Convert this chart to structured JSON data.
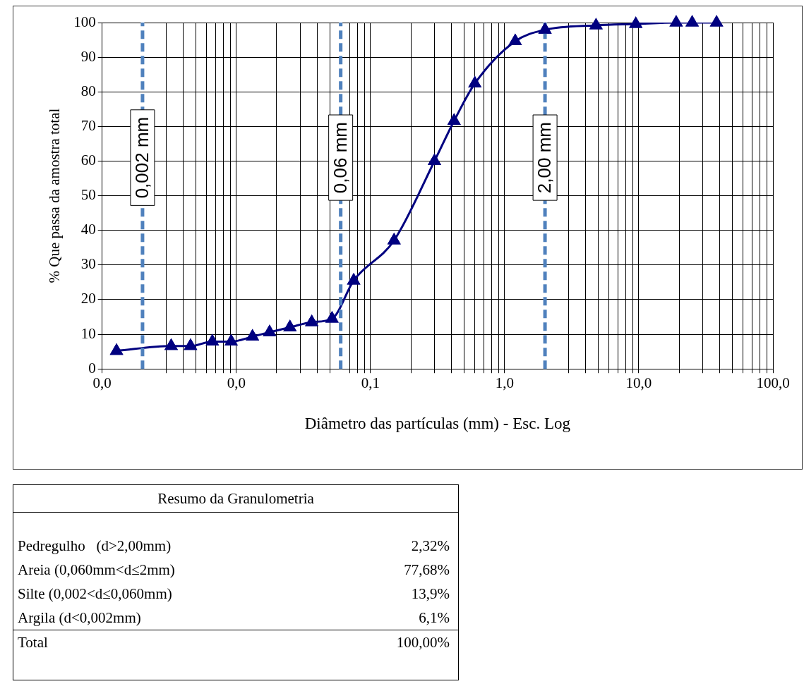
{
  "chart_data": {
    "type": "line",
    "xlabel": "Diâmetro das partículas (mm) - Esc. Log",
    "ylabel": "% Que passa da amostra total",
    "series": [
      {
        "color": "#000080",
        "x": [
          0.00128,
          0.00327,
          0.00456,
          0.00663,
          0.00916,
          0.0132,
          0.0177,
          0.0251,
          0.0365,
          0.0517,
          0.075,
          0.15,
          0.3,
          0.42,
          0.6,
          1.2,
          2.0,
          4.8,
          9.5,
          19,
          25,
          38
        ],
        "values": [
          5.2,
          6.6,
          6.6,
          7.9,
          7.9,
          9.3,
          10.6,
          12.0,
          13.5,
          14.5,
          25.5,
          37.1,
          60.0,
          71.6,
          82.4,
          94.6,
          97.9,
          99.2,
          99.6,
          100,
          100,
          100
        ]
      }
    ],
    "log": "x",
    "marker": "triangle",
    "grid": true,
    "xlim": [
      0.001,
      100
    ],
    "xticks": [
      {
        "value": 0.001,
        "label": "0,0"
      },
      {
        "value": 0.003,
        "label": null
      },
      {
        "value": 0.004,
        "label": null
      },
      {
        "value": 0.005,
        "label": null
      },
      {
        "value": 0.006,
        "label": null
      },
      {
        "value": 0.007,
        "label": null
      },
      {
        "value": 0.008,
        "label": null
      },
      {
        "value": 0.009,
        "label": null
      },
      {
        "value": 0.01,
        "label": "0,0"
      },
      {
        "value": 0.02,
        "label": null
      },
      {
        "value": 0.03,
        "label": null
      },
      {
        "value": 0.04,
        "label": null
      },
      {
        "value": 0.05,
        "label": null
      },
      {
        "value": 0.07,
        "label": null
      },
      {
        "value": 0.08,
        "label": null
      },
      {
        "value": 0.09,
        "label": null
      },
      {
        "value": 0.1,
        "label": "0,1"
      },
      {
        "value": 0.2,
        "label": null
      },
      {
        "value": 0.3,
        "label": null
      },
      {
        "value": 0.4,
        "label": null
      },
      {
        "value": 0.5,
        "label": null
      },
      {
        "value": 0.6,
        "label": null
      },
      {
        "value": 0.7,
        "label": null
      },
      {
        "value": 0.8,
        "label": null
      },
      {
        "value": 0.9,
        "label": null
      },
      {
        "value": 1,
        "label": "1,0"
      },
      {
        "value": 3,
        "label": null
      },
      {
        "value": 4,
        "label": null
      },
      {
        "value": 5,
        "label": null
      },
      {
        "value": 6,
        "label": null
      },
      {
        "value": 7,
        "label": null
      },
      {
        "value": 8,
        "label": null
      },
      {
        "value": 9,
        "label": null
      },
      {
        "value": 10,
        "label": "10,0"
      },
      {
        "value": 20,
        "label": null
      },
      {
        "value": 30,
        "label": null
      },
      {
        "value": 40,
        "label": null
      },
      {
        "value": 50,
        "label": null
      },
      {
        "value": 60,
        "label": null
      },
      {
        "value": 70,
        "label": null
      },
      {
        "value": 80,
        "label": null
      },
      {
        "value": 90,
        "label": null
      },
      {
        "value": 100,
        "label": "100,0"
      }
    ],
    "ylim": [
      0,
      100
    ],
    "yticks": [
      0,
      10,
      20,
      30,
      40,
      50,
      60,
      70,
      80,
      90,
      100
    ],
    "ref_lines": [
      {
        "axis": "x",
        "value": 0.002,
        "label": "0,002 mm",
        "color": "#4f81bd",
        "line_style": "dashed"
      },
      {
        "axis": "x",
        "value": 0.06,
        "label": "0,06 mm",
        "color": "#4f81bd",
        "line_style": "dashed"
      },
      {
        "axis": "x",
        "value": 2,
        "label": "2,00 mm",
        "color": "#4f81bd",
        "line_style": "dashed"
      }
    ],
    "annotations": [
      "Resumo da Granulometria",
      "Pedregulho   (d>2,00mm)",
      "2,32%",
      "Areia (0,060mm<d≤2mm)",
      "77,68%",
      "Silte (0,002<d≤0,060mm)",
      "13,9%",
      "Argila (d<0,002mm)",
      "6,1%",
      "Total",
      "100,00%"
    ]
  }
}
